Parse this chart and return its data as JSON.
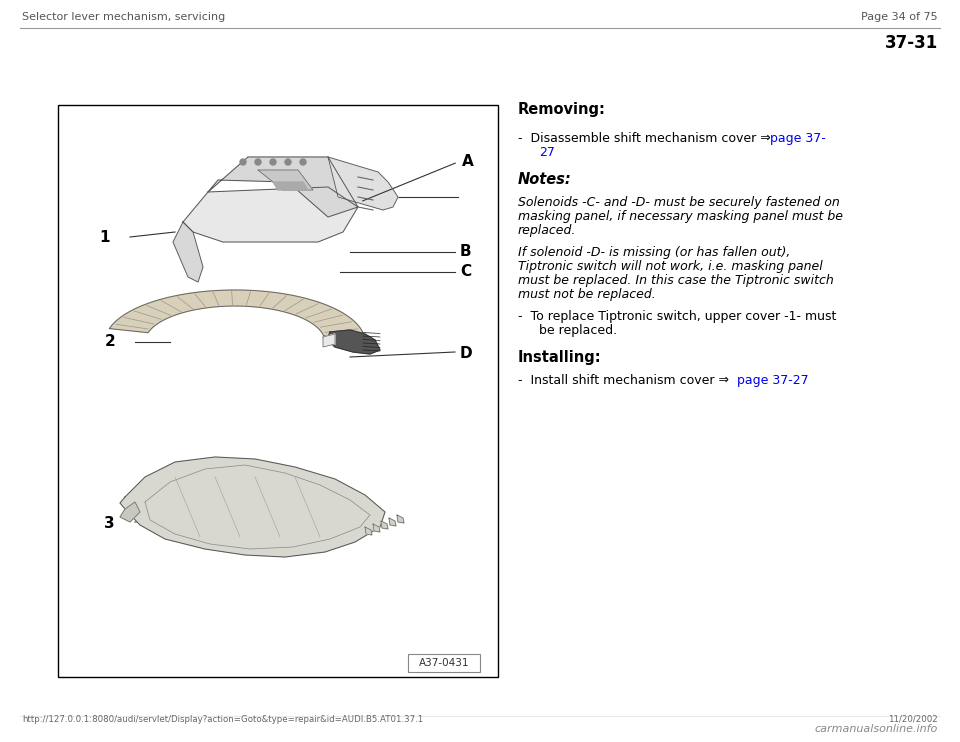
{
  "bg_color": "#ffffff",
  "header_left": "Selector lever mechanism, servicing",
  "header_right": "Page 34 of 75",
  "page_number": "37-31",
  "footer_url": "http://127.0.0.1:8080/audi/servlet/Display?action=Goto&type=repair&id=AUDI.B5.AT01.37.1",
  "footer_right": "11/20/2002",
  "footer_logo": "carmanualsonline.info",
  "diagram_label": "A37-0431",
  "removing_title": "Removing:",
  "notes_title": "Notes:",
  "notes_text1": "Solenoids -C- and -D- must be securely fastened on\nmasking panel, if necessary masking panel must be\nreplaced.",
  "notes_text2": "If solenoid -D- is missing (or has fallen out),\nTiptronic switch will not work, i.e. masking panel\nmust be replaced. In this case the Tiptronic switch\nmust not be replaced.",
  "bullet2_line1": "To replace Tiptronic switch, upper cover -1- must",
  "bullet2_line2": "be replaced.",
  "installing_title": "Installing:",
  "link_color": "#0000ee",
  "header_line_color": "#999999",
  "text_color": "#000000",
  "gray_line": "#aaaaaa"
}
